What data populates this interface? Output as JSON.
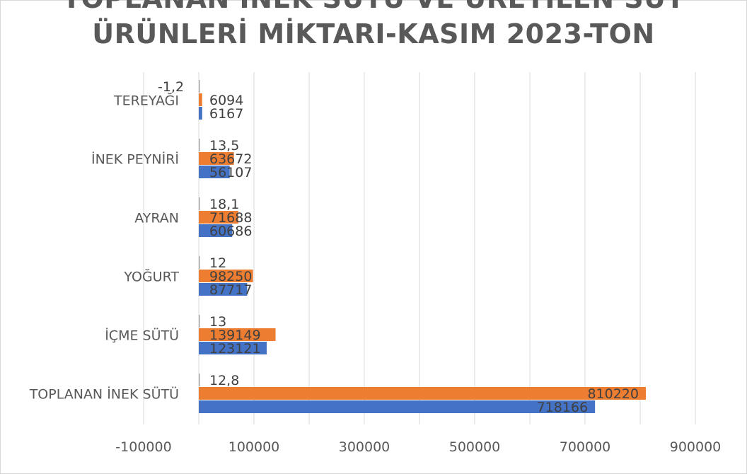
{
  "chart_data": {
    "type": "bar",
    "orientation": "horizontal",
    "title_lines": [
      "TOPLANAN İNEK SÜTÜ VE ÜRETİLEN SÜT",
      "ÜRÜNLERİ MİKTARI-KASIM 2023-TON"
    ],
    "categories": [
      "TOPLANAN İNEK SÜTÜ",
      "İÇME SÜTÜ",
      "YOĞURT",
      "AYRAN",
      "İNEK PEYNİRİ",
      "TEREYAĞI"
    ],
    "series": [
      {
        "values": [
          718166,
          123121,
          87717,
          60686,
          56107,
          6167
        ],
        "labels": [
          "718166",
          "123121",
          "87717",
          "60686",
          "56107",
          "6167"
        ],
        "color": "#4472c4"
      },
      {
        "values": [
          810220,
          139149,
          98250,
          71688,
          63672,
          6094
        ],
        "labels": [
          "810220",
          "139149",
          "98250",
          "71688",
          "63672",
          "6094"
        ],
        "color": "#ed7d31"
      },
      {
        "values": [
          12.8,
          13,
          12,
          18.1,
          13.5,
          -1.2
        ],
        "labels": [
          "12,8",
          "13",
          "12",
          "18,1",
          "13,5",
          "-1,2"
        ],
        "color": "#a5a5a5"
      }
    ],
    "x_ticks": [
      "-100000",
      "100000",
      "300000",
      "500000",
      "700000",
      "900000"
    ],
    "xlim": [
      -100000,
      900000
    ],
    "grid": true
  }
}
